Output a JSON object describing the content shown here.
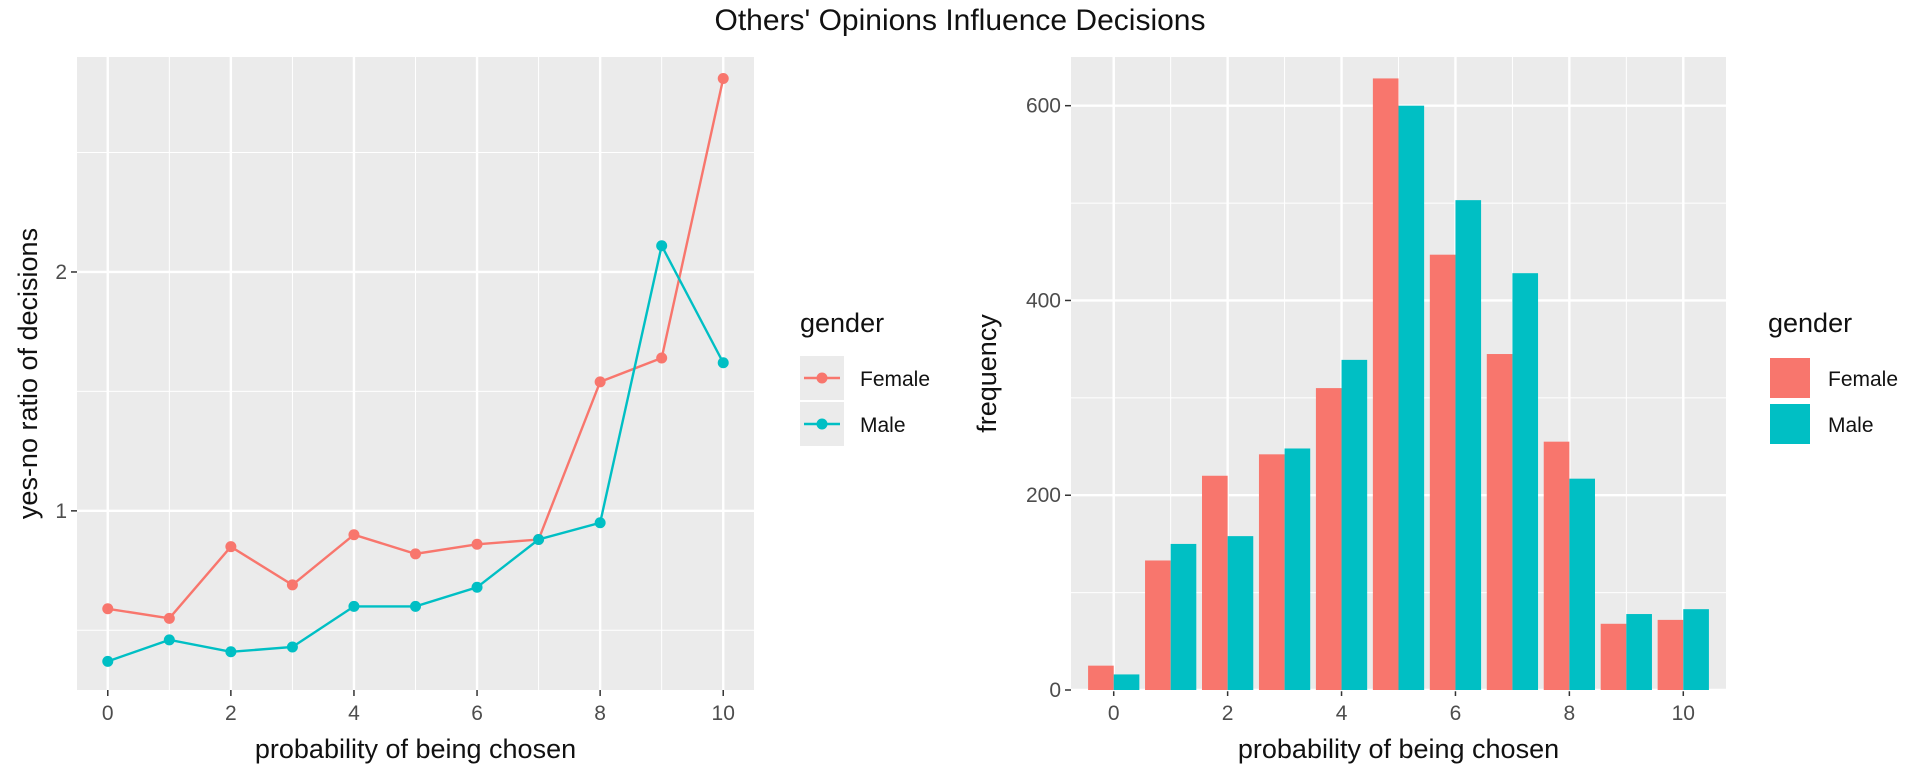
{
  "title": "Others' Opinions Influence Decisions",
  "colors": {
    "Female": "#F8766D",
    "Male": "#00BFC4",
    "panel": "#EBEBEB",
    "grid": "#FFFFFF"
  },
  "chart_data": [
    {
      "type": "line",
      "xlabel": "probability of being chosen",
      "ylabel": "yes-no ratio of decisions",
      "xlim": [
        -0.5,
        10.5
      ],
      "ylim": [
        0.25,
        2.9
      ],
      "x_ticks": [
        0,
        2,
        4,
        6,
        8,
        10
      ],
      "y_ticks": [
        1,
        2
      ],
      "x": [
        0,
        1,
        2,
        3,
        4,
        5,
        6,
        7,
        8,
        9,
        10
      ],
      "series": [
        {
          "name": "Female",
          "values": [
            0.59,
            0.55,
            0.85,
            0.69,
            0.9,
            0.82,
            0.86,
            0.88,
            1.54,
            1.64,
            2.81
          ]
        },
        {
          "name": "Male",
          "values": [
            0.37,
            0.46,
            0.41,
            0.43,
            0.6,
            0.6,
            0.68,
            0.88,
            0.95,
            2.11,
            1.62
          ]
        }
      ],
      "legend": {
        "title": "gender",
        "position": "right"
      },
      "grid": true
    },
    {
      "type": "bar",
      "xlabel": "probability of being chosen",
      "ylabel": "frequency",
      "xlim": [
        -0.75,
        10.75
      ],
      "ylim": [
        0,
        650
      ],
      "x_ticks": [
        0,
        2,
        4,
        6,
        8,
        10
      ],
      "y_ticks": [
        0,
        200,
        400,
        600
      ],
      "categories": [
        0,
        1,
        2,
        3,
        4,
        5,
        6,
        7,
        8,
        9,
        10
      ],
      "series": [
        {
          "name": "Female",
          "values": [
            25,
            133,
            220,
            242,
            310,
            628,
            447,
            345,
            255,
            68,
            72
          ]
        },
        {
          "name": "Male",
          "values": [
            16,
            150,
            158,
            248,
            339,
            600,
            503,
            428,
            217,
            78,
            83
          ]
        }
      ],
      "legend": {
        "title": "gender",
        "position": "right"
      },
      "grid": true
    }
  ]
}
